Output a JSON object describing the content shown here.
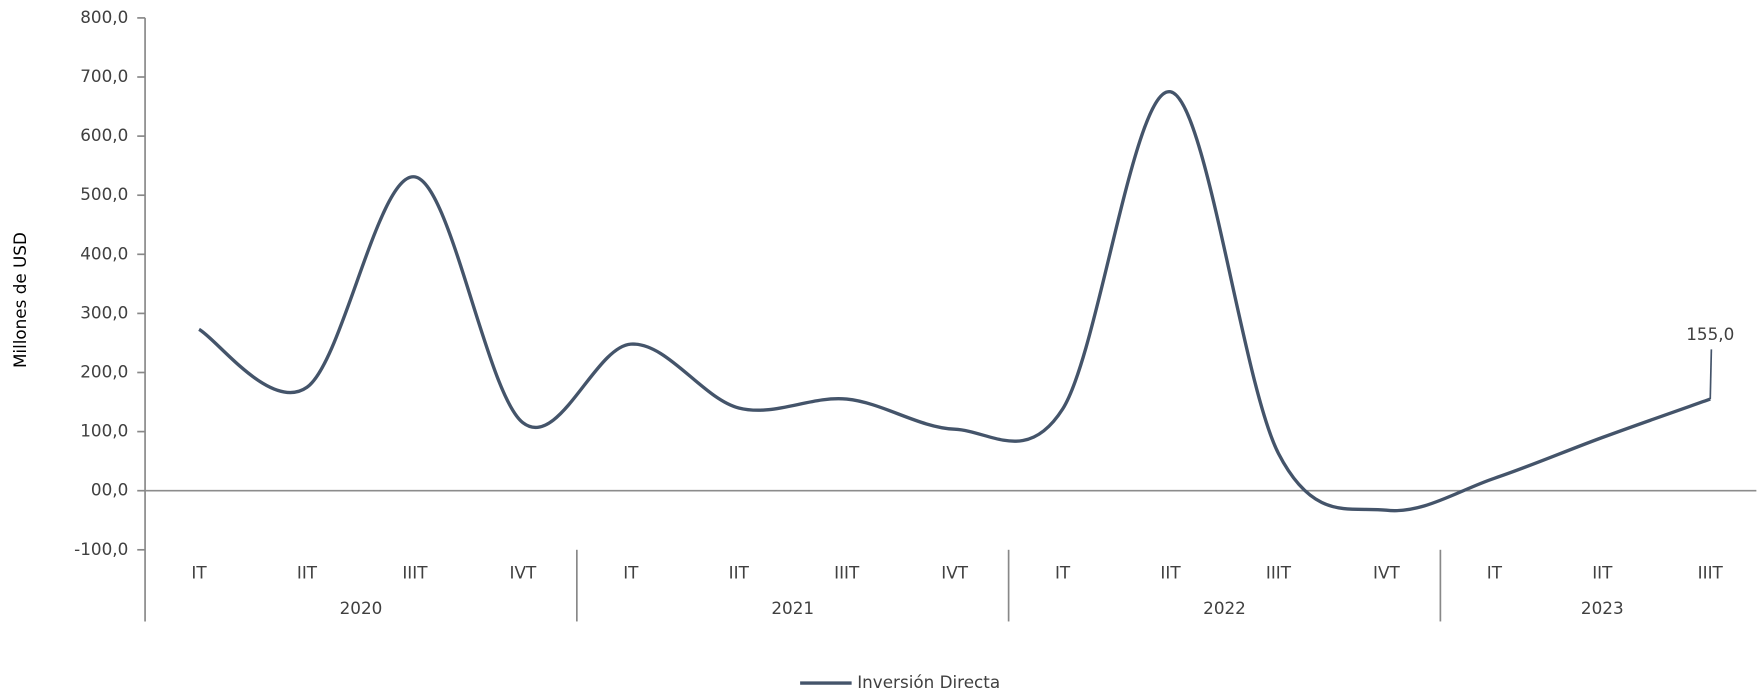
{
  "chart_data": {
    "type": "line",
    "y_axis_label": "Millones de USD",
    "year_groups": [
      {
        "year": "2020",
        "quarters": [
          "IT",
          "IIT",
          "IIIT",
          "IVT"
        ]
      },
      {
        "year": "2021",
        "quarters": [
          "IT",
          "IIT",
          "IIIT",
          "IVT"
        ]
      },
      {
        "year": "2022",
        "quarters": [
          "IT",
          "IIT",
          "IIIT",
          "IVT"
        ]
      },
      {
        "year": "2023",
        "quarters": [
          "IT",
          "IIT",
          "IIIT"
        ]
      }
    ],
    "series": [
      {
        "name": "Inversión Directa",
        "color": "#44546a",
        "values": [
          273,
          175,
          531,
          115,
          248,
          140,
          155,
          104,
          138,
          675,
          63,
          -33,
          21,
          90,
          155
        ],
        "value_labels": [
          null,
          null,
          null,
          null,
          null,
          null,
          null,
          null,
          null,
          null,
          null,
          null,
          null,
          null,
          "155,0"
        ]
      }
    ],
    "ylim": [
      -100,
      800
    ],
    "yticks": [
      {
        "value": -100,
        "label": "-100,0"
      },
      {
        "value": 0,
        "label": "00,0"
      },
      {
        "value": 100,
        "label": "100,0"
      },
      {
        "value": 200,
        "label": "200,0"
      },
      {
        "value": 300,
        "label": "300,0"
      },
      {
        "value": 400,
        "label": "400,0"
      },
      {
        "value": 500,
        "label": "500,0"
      },
      {
        "value": 600,
        "label": "600,0"
      },
      {
        "value": 700,
        "label": "700,0"
      },
      {
        "value": 800,
        "label": "800,0"
      }
    ],
    "legend": "bottom"
  }
}
